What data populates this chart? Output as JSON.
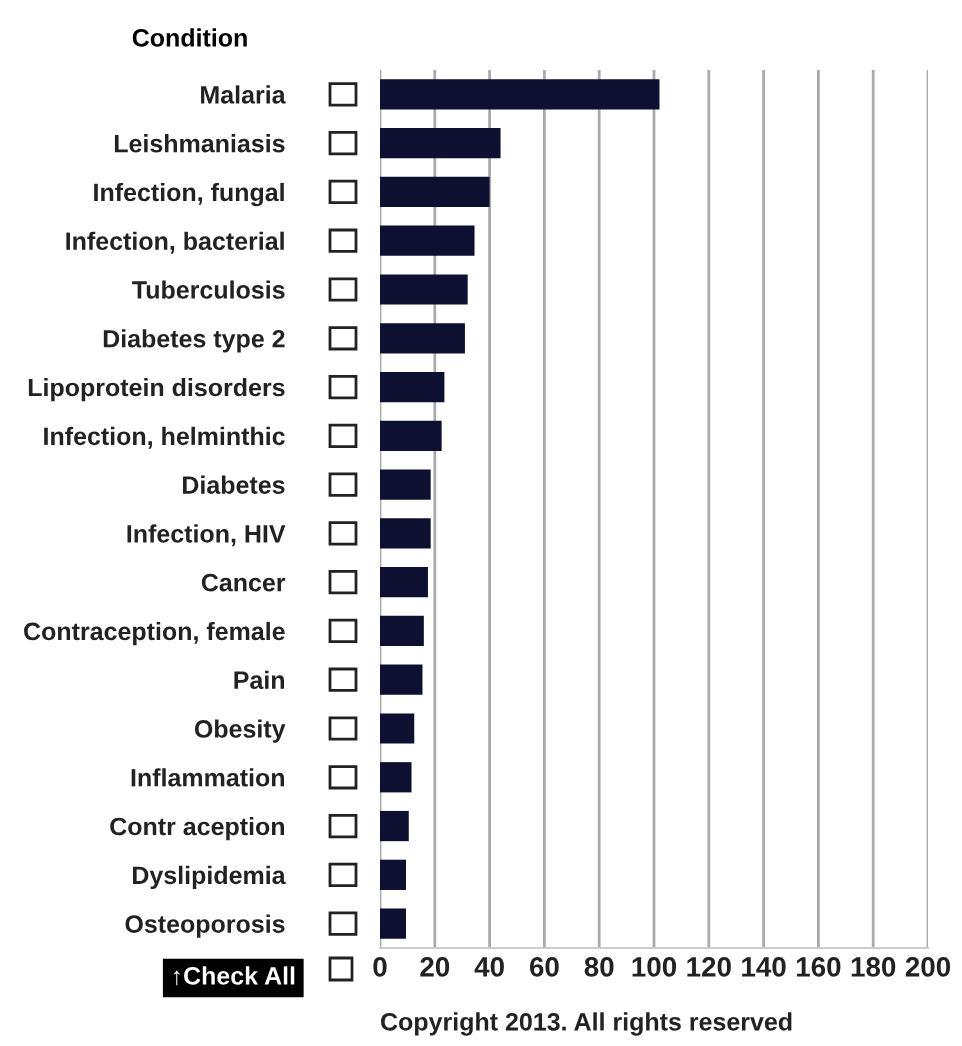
{
  "chart_data": {
    "type": "bar",
    "orientation": "horizontal",
    "ylabel": "Condition",
    "categories": [
      "Malaria",
      "Leishmaniasis",
      "Infection, fungal",
      "Infection, bacterial",
      "Tuberculosis",
      "Diabetes type 2",
      "Lipoprotein disorders",
      "Infection, helminthic",
      "Diabetes",
      "Infection, HIV",
      "Cancer",
      "Contraception, female",
      "Pain",
      "Obesity",
      "Inflammation",
      "Contr aception",
      "Dyslipidemia",
      "Osteoporosis"
    ],
    "values": [
      102,
      44,
      40,
      34.5,
      32,
      31,
      23.5,
      22.5,
      18.5,
      18.5,
      17.5,
      16,
      15.5,
      12.5,
      11.5,
      10.5,
      9.5,
      9.5
    ],
    "color": "#0d1030",
    "xlim": [
      0,
      200
    ],
    "xticks": [
      0,
      20,
      40,
      60,
      80,
      100,
      120,
      140,
      160,
      180,
      200
    ],
    "grid": "x",
    "annotations": [
      "↑Check All",
      "Copyright 2013. All rights reserved"
    ]
  }
}
